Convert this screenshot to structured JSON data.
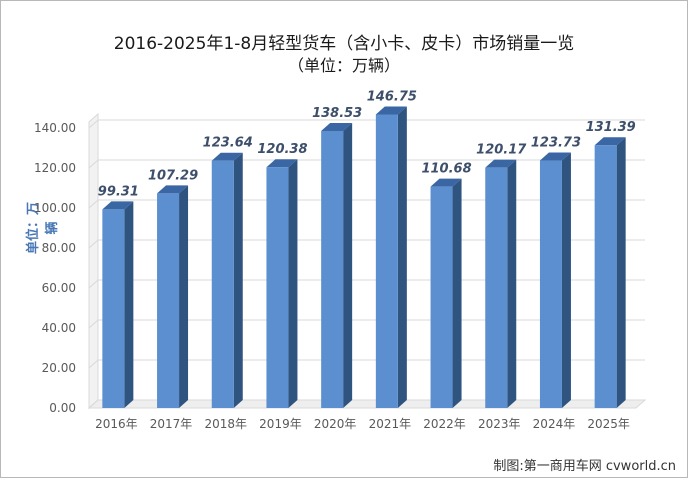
{
  "title": "2016-2025年1-8月轻型货车（含小卡、皮卡）市场销量一览",
  "subtitle": "（单位：万辆）",
  "credit": "制图:第一商用车网 cvworld.cn",
  "colors": {
    "bar_front": "#5b8fd0",
    "bar_top": "#3a66a3",
    "bar_side": "#2f5480",
    "grid": "#d9d9d9",
    "ylabel": "#4a78b5"
  },
  "chart_data": {
    "type": "bar",
    "title": "2016-2025年1-8月轻型货车（含小卡、皮卡）市场销量一览",
    "subtitle": "（单位：万辆）",
    "ylabel": "单位：万辆",
    "xlabel": "",
    "categories": [
      "2016年",
      "2017年",
      "2018年",
      "2019年",
      "2020年",
      "2021年",
      "2022年",
      "2023年",
      "2024年",
      "2025年"
    ],
    "values": [
      99.31,
      107.29,
      123.64,
      120.38,
      138.53,
      146.75,
      110.68,
      120.17,
      123.73,
      131.39
    ],
    "data_labels": [
      "99.31",
      "107.29",
      "123.64",
      "120.38",
      "138.53",
      "146.75",
      "110.68",
      "120.17",
      "123.73",
      "131.39"
    ],
    "yticks": [
      "0.00",
      "20.00",
      "40.00",
      "60.00",
      "80.00",
      "100.00",
      "120.00",
      "140.00"
    ],
    "ylim": [
      0,
      140
    ],
    "grid": true,
    "legend": "none",
    "style": "3d-column"
  }
}
